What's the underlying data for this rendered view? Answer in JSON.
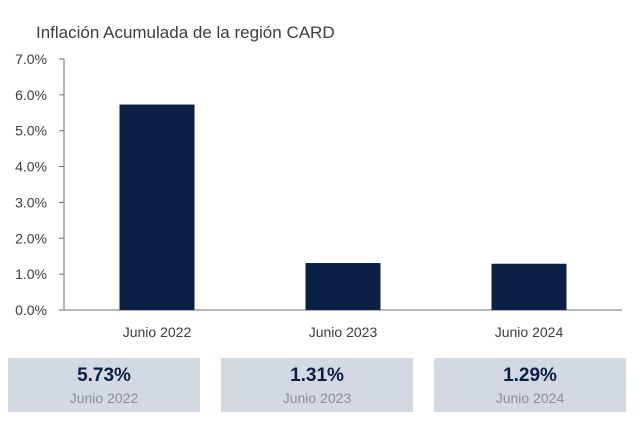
{
  "chart_data": {
    "type": "bar",
    "title": "Inflación Acumulada de la región CARD",
    "categories": [
      "Junio 2022",
      "Junio 2023",
      "Junio 2024"
    ],
    "values": [
      5.73,
      1.31,
      1.29
    ],
    "ylim": [
      0,
      7
    ],
    "yticks": [
      "0.0%",
      "1.0%",
      "2.0%",
      "3.0%",
      "4.0%",
      "5.0%",
      "6.0%",
      "7.0%"
    ],
    "xlabel": "",
    "ylabel": "",
    "grid": false,
    "bar_color": "#0b1f44"
  },
  "summary": [
    {
      "value": "5.73%",
      "label": "Junio 2022"
    },
    {
      "value": "1.31%",
      "label": "Junio 2023"
    },
    {
      "value": "1.29%",
      "label": "Junio 2024"
    }
  ]
}
